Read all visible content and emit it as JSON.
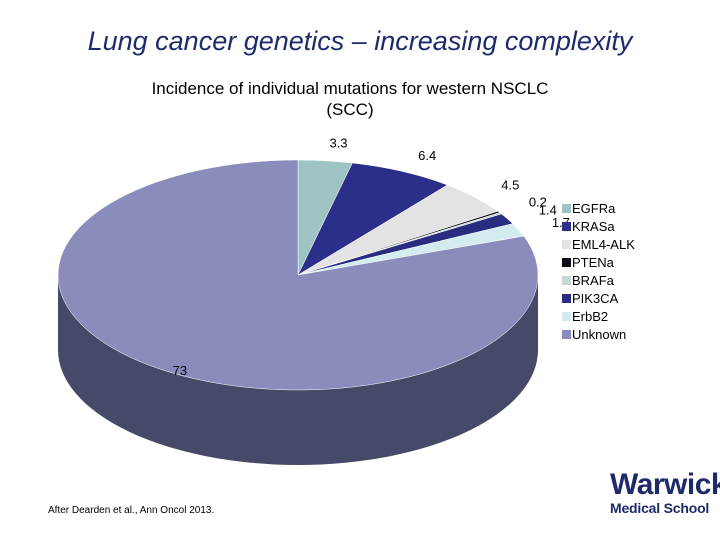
{
  "slide": {
    "title": "Lung cancer genetics – increasing complexity",
    "citation": "After Dearden et al., Ann Oncol 2013.",
    "logo": {
      "line1": "Warwick",
      "line2": "Medical School"
    }
  },
  "colors": {
    "title": "#1f2a6b",
    "depth_shade": "#464a68"
  },
  "chart_data": {
    "type": "pie",
    "title_lines": [
      "Incidence of individual mutations for western NSCLC",
      "(SCC)"
    ],
    "style": "3d",
    "legend_position": "right",
    "slices": [
      {
        "name": "EGFRa",
        "value": 3.3,
        "label": "3.3",
        "color": "#9ec4c4"
      },
      {
        "name": "KRASa",
        "value": 6.4,
        "label": "6.4",
        "color": "#2c2f8a"
      },
      {
        "name": "EML4-ALK",
        "value": 4.5,
        "label": "4.5",
        "color": "#e3e3e3"
      },
      {
        "name": "PTENa",
        "value": 0.2,
        "label": "0.2",
        "color": "#0a0a14"
      },
      {
        "name": "BRAFa",
        "value": 0.2,
        "label": "",
        "color": "#c8d8d8"
      },
      {
        "name": "PIK3CA",
        "value": 1.4,
        "label": "1.4",
        "color": "#2a2c80"
      },
      {
        "name": "ErbB2",
        "value": 1.7,
        "label": "1.7",
        "color": "#d4ecf0"
      },
      {
        "name": "Unknown",
        "value": 73,
        "label": "73",
        "color": "#8a8cbc"
      }
    ]
  }
}
